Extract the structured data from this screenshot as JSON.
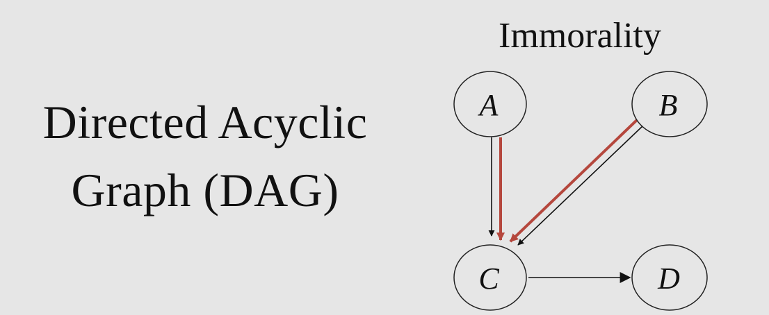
{
  "slide": {
    "title_line1": "Directed Acyclic",
    "title_line2": "Graph (DAG)"
  },
  "diagram": {
    "title": "Immorality",
    "nodes": [
      {
        "id": "A",
        "label": "A"
      },
      {
        "id": "B",
        "label": "B"
      },
      {
        "id": "C",
        "label": "C"
      },
      {
        "id": "D",
        "label": "D"
      }
    ],
    "edges": [
      {
        "from": "A",
        "to": "C",
        "highlighted": true
      },
      {
        "from": "B",
        "to": "C",
        "highlighted": true
      },
      {
        "from": "C",
        "to": "D",
        "highlighted": false
      }
    ],
    "colors": {
      "background": "#e6e6e6",
      "edge": "#111111",
      "highlight": "#b5473d"
    }
  }
}
